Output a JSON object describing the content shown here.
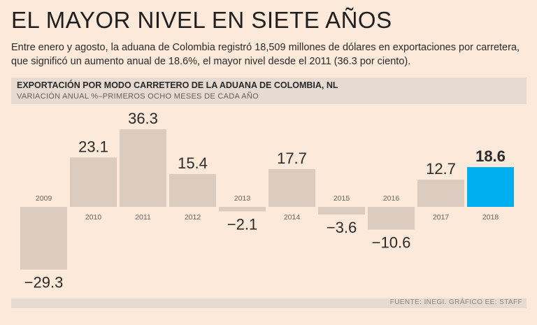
{
  "headline": "EL MAYOR NIVEL EN SIETE AÑOS",
  "intro": "Entre enero y agosto, la aduana de Colombia registró 18,509 millones de dólares en exportaciones por carretera, que significó un aumento anual de 18.6%, el mayor nivel desde el 2011 (36.3 por ciento).",
  "chart_header": {
    "title": "EXPORTACIÓN POR MODO CARRETERO DE LA ADUANA DE COLOMBIA, NL",
    "subtitle": "VARIACIÓN ANUAL %–PRIMEROS OCHO MESES DE CADA AÑO"
  },
  "source": "FUENTE: INEGI. GRÁFICO EE: STAFF",
  "colors": {
    "bar_default": "#dcccbf",
    "bar_highlight": "#00aeef"
  },
  "chart_data": {
    "type": "bar",
    "title": "EXPORTACIÓN POR MODO CARRETERO DE LA ADUANA DE COLOMBIA, NL",
    "subtitle": "VARIACIÓN ANUAL %–PRIMEROS OCHO MESES DE CADA AÑO",
    "xlabel": "",
    "ylabel": "",
    "categories": [
      "2009",
      "2010",
      "2011",
      "2012",
      "2013",
      "2014",
      "2015",
      "2016",
      "2017",
      "2018"
    ],
    "values": [
      -29.3,
      23.1,
      36.3,
      15.4,
      -2.1,
      17.7,
      -3.6,
      -10.6,
      12.7,
      18.6
    ],
    "value_labels": [
      "−29.3",
      "23.1",
      "36.3",
      "15.4",
      "−2.1",
      "17.7",
      "−3.6",
      "−10.6",
      "12.7",
      "18.6"
    ],
    "highlight": "2018",
    "ylim": [
      -30,
      37
    ],
    "grid": false
  }
}
